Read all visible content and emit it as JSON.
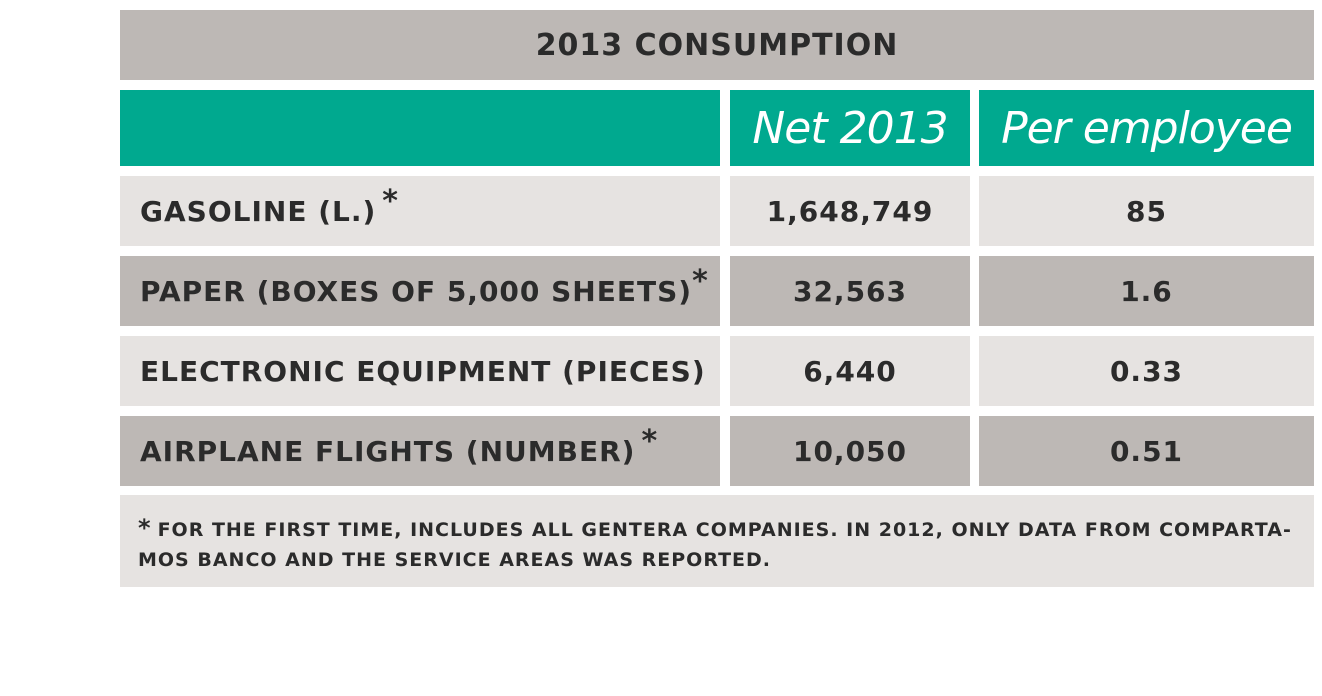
{
  "table": {
    "title": "2013 CONSUMPTION",
    "headers": {
      "blank": "",
      "net": "Net 2013",
      "per_employee": "Per employee"
    },
    "rows": [
      {
        "label": "GASOLINE (L.)",
        "marker": "*",
        "net": "1,648,749",
        "per_employee": "85"
      },
      {
        "label": "PAPER (BOXES OF 5,000 SHEETS)",
        "marker": "*",
        "net": "32,563",
        "per_employee": "1.6"
      },
      {
        "label": "ELECTRONIC EQUIPMENT (PIECES)",
        "marker": "",
        "net": "6,440",
        "per_employee": "0.33"
      },
      {
        "label": "AIRPLANE FLIGHTS (NUMBER)",
        "marker": "*",
        "net": "10,050",
        "per_employee": "0.51"
      }
    ],
    "footnote": {
      "marker": "*",
      "text": "FOR THE FIRST TIME, INCLUDES ALL GENTERA COMPANIES. IN 2012, ONLY DATA FROM COMPARTA-MOS BANCO AND THE SERVICE AREAS WAS REPORTED."
    }
  },
  "colors": {
    "header_teal": "#00a98f",
    "band_gray": "#bdb8b5",
    "band_light": "#e6e3e1",
    "text": "#2b2b2b"
  }
}
